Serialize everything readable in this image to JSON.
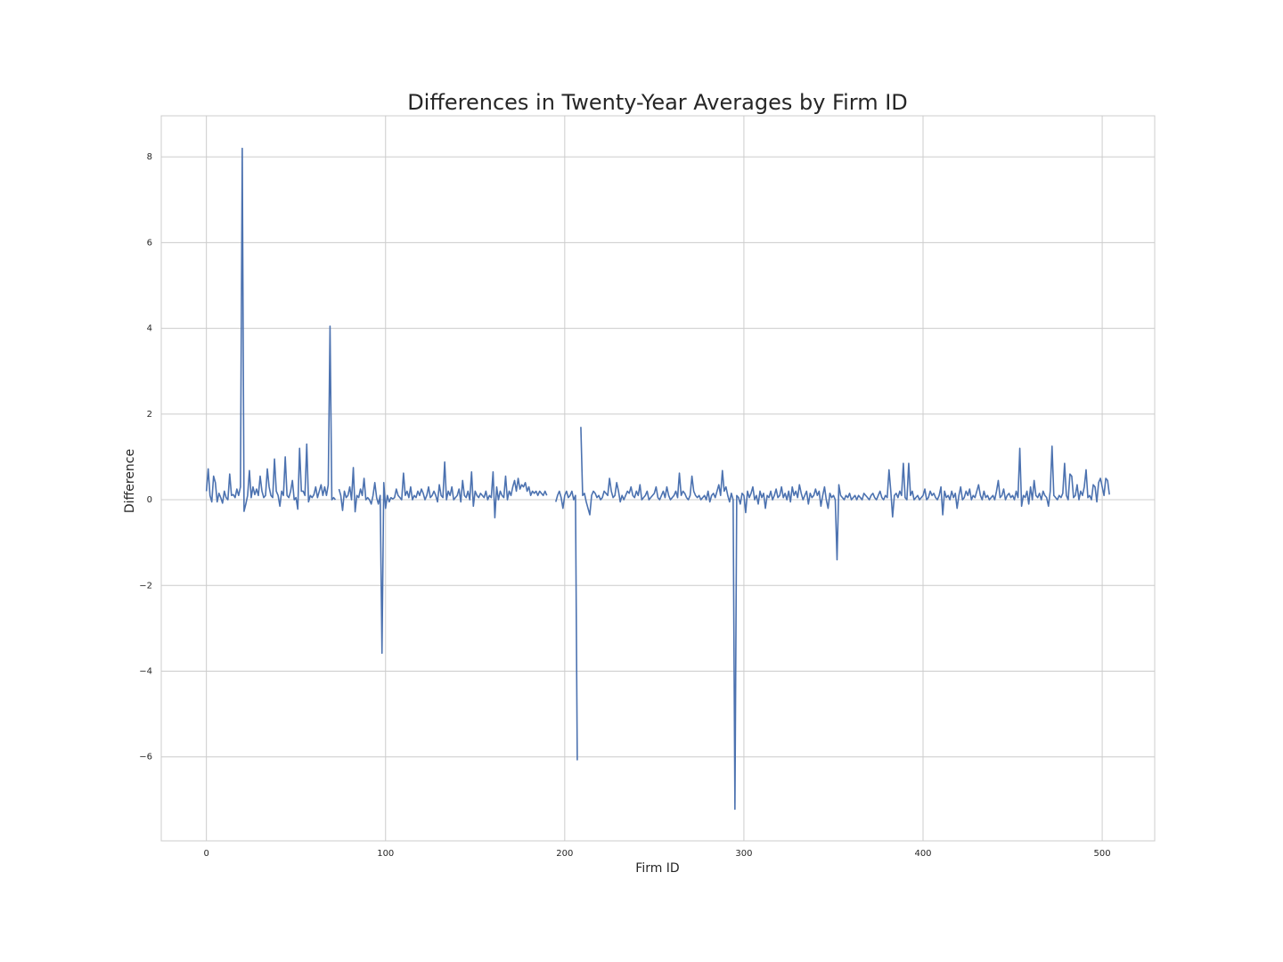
{
  "chart_data": {
    "type": "line",
    "title": "Differences in Twenty-Year Averages by Firm ID",
    "x_label": "Firm ID",
    "y_label": "Difference",
    "xlim": [
      -25.2,
      529.3
    ],
    "ylim": [
      -7.96,
      8.96
    ],
    "xticks": [
      0,
      100,
      200,
      300,
      400,
      500
    ],
    "yticks": [
      {
        "value": -6,
        "label": "−6"
      },
      {
        "value": -4,
        "label": "−4"
      },
      {
        "value": -2,
        "label": "−2"
      },
      0,
      2,
      4,
      6,
      8
    ],
    "grid": true,
    "x": [
      0,
      1,
      2,
      3,
      4,
      5,
      6,
      7,
      8,
      9,
      10,
      11,
      12,
      13,
      14,
      15,
      16,
      17,
      18,
      19,
      20,
      21,
      22,
      23,
      24,
      25,
      26,
      27,
      28,
      29,
      30,
      31,
      32,
      33,
      34,
      35,
      36,
      37,
      38,
      39,
      40,
      41,
      42,
      43,
      44,
      45,
      46,
      47,
      48,
      49,
      50,
      51,
      52,
      53,
      54,
      55,
      56,
      57,
      58,
      59,
      60,
      61,
      62,
      63,
      64,
      65,
      66,
      67,
      68,
      69,
      70,
      71,
      72,
      73,
      74,
      75,
      76,
      77,
      78,
      79,
      80,
      81,
      82,
      83,
      84,
      85,
      86,
      87,
      88,
      89,
      90,
      91,
      92,
      93,
      94,
      95,
      96,
      97,
      98,
      99,
      100,
      101,
      102,
      103,
      104,
      105,
      106,
      107,
      108,
      109,
      110,
      111,
      112,
      113,
      114,
      115,
      116,
      117,
      118,
      119,
      120,
      121,
      122,
      123,
      124,
      125,
      126,
      127,
      128,
      129,
      130,
      131,
      132,
      133,
      134,
      135,
      136,
      137,
      138,
      139,
      140,
      141,
      142,
      143,
      144,
      145,
      146,
      147,
      148,
      149,
      150,
      151,
      152,
      153,
      154,
      155,
      156,
      157,
      158,
      159,
      160,
      161,
      162,
      163,
      164,
      165,
      166,
      167,
      168,
      169,
      170,
      171,
      172,
      173,
      174,
      175,
      176,
      177,
      178,
      179,
      180,
      181,
      182,
      183,
      184,
      185,
      186,
      187,
      188,
      189,
      190,
      191,
      192,
      193,
      194,
      195,
      196,
      197,
      198,
      199,
      200,
      201,
      202,
      203,
      204,
      205,
      206,
      207,
      208,
      209,
      210,
      211,
      212,
      213,
      214,
      215,
      216,
      217,
      218,
      219,
      220,
      221,
      222,
      223,
      224,
      225,
      226,
      227,
      228,
      229,
      230,
      231,
      232,
      233,
      234,
      235,
      236,
      237,
      238,
      239,
      240,
      241,
      242,
      243,
      244,
      245,
      246,
      247,
      248,
      249,
      250,
      251,
      252,
      253,
      254,
      255,
      256,
      257,
      258,
      259,
      260,
      261,
      262,
      263,
      264,
      265,
      266,
      267,
      268,
      269,
      270,
      271,
      272,
      273,
      274,
      275,
      276,
      277,
      278,
      279,
      280,
      281,
      282,
      283,
      284,
      285,
      286,
      287,
      288,
      289,
      290,
      291,
      292,
      293,
      294,
      295,
      296,
      297,
      298,
      299,
      300,
      301,
      302,
      303,
      304,
      305,
      306,
      307,
      308,
      309,
      310,
      311,
      312,
      313,
      314,
      315,
      316,
      317,
      318,
      319,
      320,
      321,
      322,
      323,
      324,
      325,
      326,
      327,
      328,
      329,
      330,
      331,
      332,
      333,
      334,
      335,
      336,
      337,
      338,
      339,
      340,
      341,
      342,
      343,
      344,
      345,
      346,
      347,
      348,
      349,
      350,
      351,
      352,
      353,
      354,
      355,
      356,
      357,
      358,
      359,
      360,
      361,
      362,
      363,
      364,
      365,
      366,
      367,
      368,
      369,
      370,
      371,
      372,
      373,
      374,
      375,
      376,
      377,
      378,
      379,
      380,
      381,
      382,
      383,
      384,
      385,
      386,
      387,
      388,
      389,
      390,
      391,
      392,
      393,
      394,
      395,
      396,
      397,
      398,
      399,
      400,
      401,
      402,
      403,
      404,
      405,
      406,
      407,
      408,
      409,
      410,
      411,
      412,
      413,
      414,
      415,
      416,
      417,
      418,
      419,
      420,
      421,
      422,
      423,
      424,
      425,
      426,
      427,
      428,
      429,
      430,
      431,
      432,
      433,
      434,
      435,
      436,
      437,
      438,
      439,
      440,
      441,
      442,
      443,
      444,
      445,
      446,
      447,
      448,
      449,
      450,
      451,
      452,
      453,
      454,
      455,
      456,
      457,
      458,
      459,
      460,
      461,
      462,
      463,
      464,
      465,
      466,
      467,
      468,
      469,
      470,
      471,
      472,
      473,
      474,
      475,
      476,
      477,
      478,
      479,
      480,
      481,
      482,
      483,
      484,
      485,
      486,
      487,
      488,
      489,
      490,
      491,
      492,
      493,
      494,
      495,
      496,
      497,
      498,
      499,
      500,
      501,
      502,
      503,
      504
    ],
    "series": [
      {
        "color": "#4c72b0",
        "values": [
          0.2,
          0.72,
          0.1,
          -0.05,
          0.55,
          0.4,
          -0.05,
          0.15,
          0.05,
          -0.08,
          0.2,
          0.05,
          0.0,
          0.6,
          0.1,
          0.12,
          0.05,
          0.25,
          0.1,
          0.3,
          8.2,
          -0.27,
          -0.1,
          0.1,
          0.68,
          0.05,
          0.3,
          0.12,
          0.25,
          0.1,
          0.55,
          0.2,
          0.05,
          0.1,
          0.72,
          0.3,
          0.1,
          0.05,
          0.95,
          0.2,
          0.1,
          -0.15,
          0.2,
          0.1,
          1.0,
          0.1,
          0.05,
          0.2,
          0.45,
          0.0,
          0.05,
          -0.22,
          1.2,
          0.2,
          0.2,
          0.1,
          1.3,
          -0.05,
          0.1,
          0.05,
          0.12,
          0.3,
          0.05,
          0.2,
          0.35,
          0.1,
          0.3,
          0.1,
          0.35,
          4.05,
          0.0,
          0.05,
          0.0,
          null,
          0.25,
          0.1,
          -0.25,
          0.2,
          0.05,
          0.1,
          0.3,
          0.0,
          0.75,
          -0.28,
          0.1,
          0.05,
          0.25,
          0.1,
          0.5,
          0.0,
          0.05,
          0.0,
          -0.1,
          0.1,
          0.4,
          0.05,
          -0.1,
          0.1,
          -3.58,
          0.4,
          -0.2,
          0.1,
          -0.05,
          0.05,
          0.02,
          0.05,
          0.25,
          0.1,
          0.05,
          0.0,
          0.62,
          0.1,
          0.2,
          0.05,
          0.3,
          0.0,
          0.1,
          0.05,
          0.2,
          0.1,
          0.25,
          0.15,
          0.0,
          0.1,
          0.3,
          0.05,
          0.1,
          0.2,
          0.1,
          -0.05,
          0.35,
          0.1,
          0.05,
          0.88,
          0.0,
          0.2,
          0.1,
          0.3,
          0.0,
          0.05,
          0.1,
          0.25,
          -0.05,
          0.45,
          0.1,
          0.05,
          0.2,
          0.0,
          0.65,
          -0.15,
          0.2,
          0.1,
          0.05,
          0.15,
          0.1,
          0.05,
          0.2,
          0.0,
          0.1,
          0.05,
          0.65,
          -0.42,
          0.3,
          0.0,
          0.2,
          0.1,
          0.05,
          0.55,
          0.0,
          0.2,
          0.1,
          0.3,
          0.45,
          0.2,
          0.5,
          0.25,
          0.35,
          0.3,
          0.4,
          0.2,
          0.3,
          0.1,
          0.2,
          0.15,
          0.2,
          0.1,
          0.2,
          0.15,
          0.1,
          0.2,
          0.1,
          null,
          null,
          null,
          null,
          -0.05,
          0.1,
          0.2,
          0.05,
          -0.2,
          0.1,
          0.2,
          0.05,
          0.1,
          0.2,
          0.0,
          0.1,
          -6.08,
          null,
          1.7,
          0.1,
          0.15,
          -0.05,
          -0.2,
          -0.35,
          0.1,
          0.2,
          0.15,
          0.05,
          0.1,
          0.0,
          0.05,
          0.2,
          0.15,
          0.1,
          0.5,
          0.2,
          0.05,
          0.1,
          0.4,
          0.2,
          -0.05,
          0.1,
          0.0,
          0.1,
          0.2,
          0.15,
          0.3,
          0.1,
          0.05,
          0.2,
          0.1,
          0.35,
          0.0,
          0.05,
          0.1,
          0.2,
          0.0,
          0.05,
          0.1,
          0.15,
          0.3,
          0.05,
          0.0,
          0.1,
          0.2,
          0.05,
          0.3,
          0.1,
          0.0,
          0.05,
          0.1,
          0.2,
          0.05,
          0.62,
          0.1,
          0.2,
          0.15,
          0.05,
          0.0,
          0.1,
          0.55,
          0.2,
          0.1,
          0.05,
          0.1,
          0.0,
          0.05,
          0.1,
          0.0,
          0.2,
          -0.05,
          0.1,
          0.15,
          0.05,
          0.2,
          0.35,
          0.1,
          0.68,
          0.2,
          0.3,
          0.1,
          -0.05,
          0.15,
          0.0,
          -7.22,
          0.1,
          0.05,
          -0.1,
          0.15,
          0.1,
          -0.3,
          0.2,
          0.05,
          0.15,
          0.3,
          0.0,
          0.1,
          -0.1,
          0.2,
          0.05,
          0.15,
          -0.2,
          0.1,
          0.05,
          0.2,
          0.0,
          0.1,
          0.25,
          0.05,
          0.1,
          0.3,
          0.05,
          0.15,
          0.0,
          0.2,
          -0.05,
          0.3,
          0.1,
          0.2,
          0.05,
          0.35,
          0.15,
          0.0,
          0.1,
          0.2,
          -0.1,
          0.15,
          0.05,
          0.1,
          0.25,
          0.1,
          0.2,
          -0.15,
          0.1,
          0.3,
          0.0,
          -0.2,
          0.15,
          0.05,
          0.1,
          0.0,
          -1.4,
          0.35,
          0.1,
          0.05,
          0.0,
          0.1,
          0.05,
          0.15,
          0.0,
          0.05,
          0.1,
          0.0,
          0.1,
          0.05,
          0.0,
          0.15,
          0.1,
          0.05,
          0.0,
          0.1,
          0.15,
          0.05,
          0.0,
          0.1,
          0.2,
          0.05,
          0.0,
          0.1,
          0.05,
          0.7,
          0.2,
          -0.4,
          0.1,
          0.15,
          0.05,
          0.2,
          0.1,
          0.85,
          0.05,
          0.0,
          0.85,
          0.1,
          0.2,
          0.0,
          0.05,
          0.1,
          0.0,
          0.05,
          0.1,
          0.25,
          0.0,
          0.05,
          0.2,
          0.1,
          0.15,
          0.05,
          0.0,
          0.1,
          0.3,
          -0.35,
          0.2,
          0.05,
          0.1,
          0.0,
          0.2,
          0.05,
          0.15,
          -0.2,
          0.1,
          0.3,
          0.0,
          0.05,
          0.2,
          0.1,
          0.25,
          0.0,
          0.1,
          0.05,
          0.2,
          0.35,
          0.1,
          0.0,
          0.2,
          0.05,
          0.1,
          0.0,
          0.05,
          0.1,
          0.0,
          0.2,
          0.45,
          0.05,
          0.1,
          0.25,
          0.0,
          0.1,
          0.15,
          0.05,
          0.1,
          0.0,
          0.2,
          0.05,
          1.2,
          -0.15,
          0.1,
          0.05,
          0.2,
          -0.1,
          0.3,
          0.0,
          0.45,
          0.1,
          0.05,
          0.15,
          0.0,
          0.2,
          0.1,
          0.05,
          -0.15,
          0.2,
          1.25,
          0.1,
          0.05,
          0.0,
          0.1,
          0.05,
          0.15,
          0.85,
          0.1,
          0.0,
          0.6,
          0.55,
          0.05,
          0.1,
          0.35,
          0.0,
          0.2,
          0.1,
          0.3,
          0.7,
          0.05,
          0.1,
          0.0,
          0.35,
          0.3,
          -0.05,
          0.4,
          0.5,
          0.3,
          0.1,
          0.5,
          0.45,
          0.12
        ]
      }
    ]
  }
}
